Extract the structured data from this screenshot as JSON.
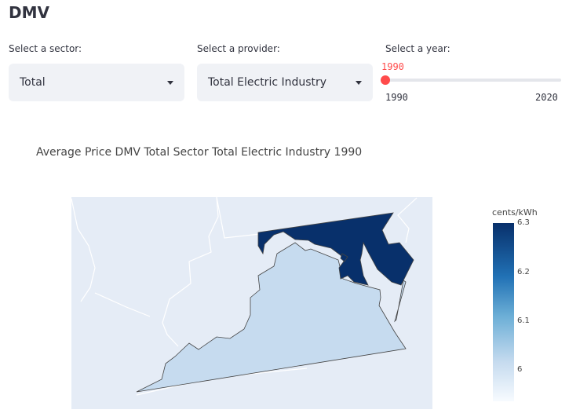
{
  "page_title": "DMV",
  "sector_select": {
    "label": "Select a sector:",
    "value": "Total"
  },
  "provider_select": {
    "label": "Select a provider:",
    "value": "Total Electric Industry"
  },
  "year_slider": {
    "label": "Select a year:",
    "value": "1990",
    "min": "1990",
    "max": "2020",
    "fraction": 0
  },
  "chart_data": {
    "type": "choropleth",
    "title": "Average Price DMV Total Sector Total Electric Industry 1990",
    "colorbar": {
      "title": "cents/kWh",
      "ticks": [
        "6.3",
        "6.2",
        "6.1",
        "6"
      ]
    },
    "regions": [
      {
        "state": "Maryland",
        "color": "#08306b"
      },
      {
        "state": "Virginia",
        "color": "#c6dbef"
      },
      {
        "state": "District of Columbia",
        "color": "#08306b"
      }
    ]
  }
}
